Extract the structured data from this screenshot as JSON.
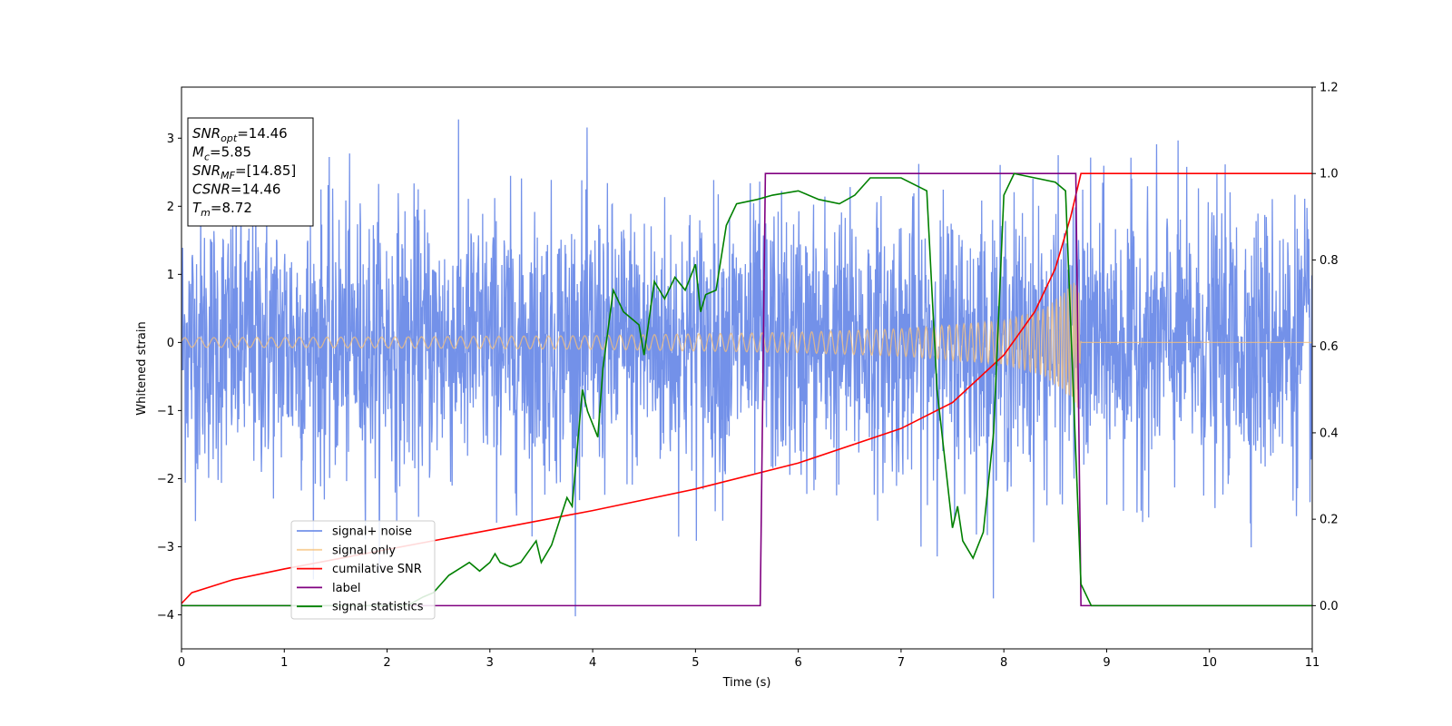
{
  "chart_data": {
    "type": "line",
    "xlabel": "Time (s)",
    "ylabel": "Whitened strain",
    "xlim": [
      0,
      11
    ],
    "ylim": [
      -4.5,
      3.75
    ],
    "y2lim": [
      -0.1,
      1.2
    ],
    "x_ticks": [
      "0",
      "1",
      "2",
      "3",
      "4",
      "5",
      "6",
      "7",
      "8",
      "9",
      "10",
      "11"
    ],
    "y_ticks": [
      "−4",
      "−3",
      "−2",
      "−1",
      "0",
      "1",
      "2",
      "3"
    ],
    "y2_ticks": [
      "0.0",
      "0.2",
      "0.4",
      "0.6",
      "0.8",
      "1.0",
      "1.2"
    ],
    "grid": false,
    "legend_position": "lower-left",
    "annotation": [
      {
        "base": "SNR",
        "sub": "opt",
        "value": "=14.46"
      },
      {
        "base": "M",
        "sub": "c",
        "value": "=5.85"
      },
      {
        "base": "SNR",
        "sub": "MF",
        "value": "=[14.85]"
      },
      {
        "base": "CSNR",
        "sub": "",
        "value": "=14.46"
      },
      {
        "base": "T",
        "sub": "m",
        "value": "=8.72"
      }
    ],
    "series": [
      {
        "name": "signal+ noise",
        "color": "#6b8be8",
        "axis": "left",
        "kind": "noise",
        "envelope_points": [
          [
            0,
            1.0
          ],
          [
            11,
            1.0
          ]
        ],
        "peak_amplitude": 3.4
      },
      {
        "name": "signal only",
        "color": "#f5c079",
        "axis": "left",
        "kind": "chirp",
        "envelope_points": [
          [
            0,
            0.07
          ],
          [
            2,
            0.08
          ],
          [
            4,
            0.1
          ],
          [
            6,
            0.15
          ],
          [
            7,
            0.2
          ],
          [
            8,
            0.32
          ],
          [
            8.4,
            0.5
          ],
          [
            8.6,
            0.75
          ],
          [
            8.72,
            1.0
          ],
          [
            8.75,
            0.0
          ],
          [
            11,
            0.0
          ]
        ]
      },
      {
        "name": "cumilative SNR",
        "color": "#ff0000",
        "axis": "right",
        "points": [
          [
            0,
            0.005
          ],
          [
            0.1,
            0.03
          ],
          [
            0.5,
            0.06
          ],
          [
            1,
            0.085
          ],
          [
            2,
            0.13
          ],
          [
            3,
            0.175
          ],
          [
            4,
            0.22
          ],
          [
            5,
            0.27
          ],
          [
            6,
            0.33
          ],
          [
            7,
            0.41
          ],
          [
            7.5,
            0.47
          ],
          [
            8,
            0.58
          ],
          [
            8.3,
            0.68
          ],
          [
            8.5,
            0.78
          ],
          [
            8.65,
            0.9
          ],
          [
            8.75,
            1.0
          ],
          [
            11,
            1.0
          ]
        ]
      },
      {
        "name": "label",
        "color": "#800080",
        "axis": "right",
        "points": [
          [
            0,
            0.0
          ],
          [
            5.63,
            0.0
          ],
          [
            5.68,
            1.0
          ],
          [
            8.7,
            1.0
          ],
          [
            8.75,
            0.0
          ],
          [
            11,
            0.0
          ]
        ]
      },
      {
        "name": "signal statistics",
        "color": "#008000",
        "axis": "right",
        "points": [
          [
            0,
            0.0
          ],
          [
            2.2,
            0.0
          ],
          [
            2.35,
            0.02
          ],
          [
            2.45,
            0.03
          ],
          [
            2.6,
            0.07
          ],
          [
            2.8,
            0.1
          ],
          [
            2.9,
            0.08
          ],
          [
            3.0,
            0.1
          ],
          [
            3.05,
            0.12
          ],
          [
            3.1,
            0.1
          ],
          [
            3.2,
            0.09
          ],
          [
            3.3,
            0.1
          ],
          [
            3.45,
            0.15
          ],
          [
            3.5,
            0.1
          ],
          [
            3.6,
            0.14
          ],
          [
            3.75,
            0.25
          ],
          [
            3.8,
            0.23
          ],
          [
            3.9,
            0.5
          ],
          [
            3.95,
            0.45
          ],
          [
            4.05,
            0.39
          ],
          [
            4.1,
            0.55
          ],
          [
            4.2,
            0.73
          ],
          [
            4.3,
            0.68
          ],
          [
            4.45,
            0.65
          ],
          [
            4.5,
            0.58
          ],
          [
            4.6,
            0.75
          ],
          [
            4.7,
            0.71
          ],
          [
            4.8,
            0.76
          ],
          [
            4.9,
            0.73
          ],
          [
            5.0,
            0.79
          ],
          [
            5.05,
            0.68
          ],
          [
            5.1,
            0.72
          ],
          [
            5.2,
            0.73
          ],
          [
            5.3,
            0.88
          ],
          [
            5.4,
            0.93
          ],
          [
            5.6,
            0.94
          ],
          [
            5.75,
            0.95
          ],
          [
            6.0,
            0.96
          ],
          [
            6.2,
            0.94
          ],
          [
            6.4,
            0.93
          ],
          [
            6.55,
            0.95
          ],
          [
            6.7,
            0.99
          ],
          [
            7.0,
            0.99
          ],
          [
            7.25,
            0.96
          ],
          [
            7.35,
            0.5
          ],
          [
            7.5,
            0.18
          ],
          [
            7.55,
            0.23
          ],
          [
            7.6,
            0.15
          ],
          [
            7.7,
            0.11
          ],
          [
            7.8,
            0.17
          ],
          [
            7.9,
            0.4
          ],
          [
            8.0,
            0.95
          ],
          [
            8.1,
            1.0
          ],
          [
            8.3,
            0.99
          ],
          [
            8.5,
            0.98
          ],
          [
            8.6,
            0.96
          ],
          [
            8.7,
            0.35
          ],
          [
            8.75,
            0.05
          ],
          [
            8.85,
            0.0
          ],
          [
            11,
            0.0
          ]
        ]
      }
    ]
  }
}
